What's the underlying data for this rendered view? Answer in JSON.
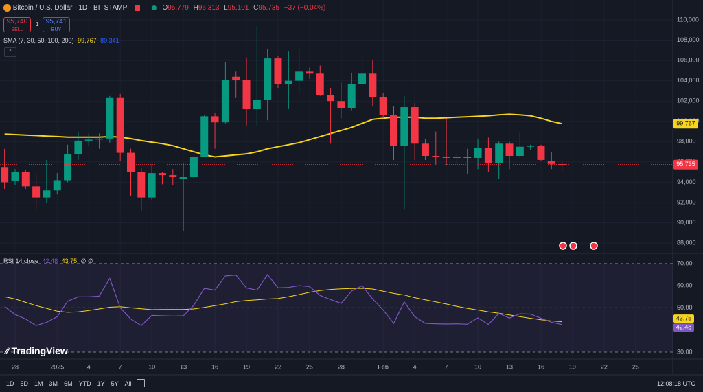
{
  "header": {
    "symbol": "Bitcoin / U.S. Dollar · 1D · BITSTAMP",
    "ohlc": [
      {
        "key": "O",
        "value": "95,779"
      },
      {
        "key": "H",
        "value": "96,313"
      },
      {
        "key": "L",
        "value": "95,101"
      },
      {
        "key": "C",
        "value": "95,735"
      }
    ],
    "change": "−37 (−0.04%)"
  },
  "trade": {
    "sell_price": "95,740",
    "sell": "SELL",
    "spread": "1",
    "buy_price": "95,741",
    "buy": "BUY"
  },
  "branding": "TradingView",
  "toolbar": {
    "ranges": [
      "1D",
      "5D",
      "1M",
      "3M",
      "6M",
      "YTD",
      "1Y",
      "5Y",
      "All"
    ],
    "clock": "12:08:18 UTC"
  },
  "chart_data": [
    {
      "type": "candlestick",
      "up_color": "#089981",
      "down_color": "#f23645",
      "grid": true,
      "categories": [
        null,
        "28",
        null,
        null,
        null,
        "2025",
        null,
        null,
        "4",
        null,
        null,
        "7",
        null,
        null,
        "10",
        null,
        null,
        "13",
        null,
        null,
        "16",
        null,
        null,
        "19",
        null,
        null,
        "22",
        null,
        null,
        "25",
        null,
        null,
        "28",
        null,
        null,
        null,
        "Feb",
        null,
        null,
        "4",
        null,
        null,
        "7",
        null,
        null,
        "10",
        null,
        null,
        "13",
        null,
        null,
        "16",
        null,
        null,
        "19",
        null,
        null,
        "22",
        null,
        null,
        "25",
        null,
        null
      ],
      "open": [
        95500,
        94100,
        95000,
        93600,
        92500,
        93200,
        94200,
        96800,
        98100,
        98200,
        98300,
        102300,
        96900,
        95000,
        92500,
        94900,
        94700,
        94300,
        94500,
        96500,
        100500,
        99900,
        104400,
        104100,
        101200,
        102100,
        106200,
        103700,
        104000,
        104900,
        104700,
        102600,
        102000,
        101300,
        103700,
        104700,
        102400,
        100600,
        97600,
        101400,
        97800,
        96600,
        96500,
        96400,
        96500,
        96400,
        97400,
        95900,
        97800,
        96600,
        97500,
        97600,
        96100,
        95779,
        null,
        null,
        null,
        null,
        null,
        null,
        null,
        null,
        null
      ],
      "high": [
        97300,
        95300,
        95200,
        94900,
        96200,
        94900,
        97700,
        98900,
        98800,
        98800,
        102500,
        102700,
        97300,
        95400,
        95800,
        95000,
        95300,
        95900,
        97300,
        100600,
        100800,
        105800,
        104900,
        106300,
        109400,
        107100,
        106400,
        106900,
        107100,
        105300,
        105500,
        103300,
        103800,
        104800,
        106400,
        106000,
        102800,
        101500,
        102500,
        101800,
        98300,
        99000,
        100300,
        96900,
        97300,
        98300,
        98400,
        98000,
        98000,
        98900,
        97700,
        97700,
        97000,
        96313,
        null,
        null,
        null,
        null,
        null,
        null,
        null,
        null,
        null
      ],
      "low": [
        93300,
        93700,
        93300,
        91300,
        92000,
        92800,
        94000,
        96200,
        97600,
        97300,
        97900,
        96100,
        92600,
        91200,
        92200,
        93800,
        93700,
        89200,
        94300,
        96500,
        97300,
        99800,
        102300,
        99600,
        99500,
        100100,
        103300,
        101200,
        102800,
        104200,
        102500,
        97800,
        100300,
        101100,
        103300,
        101500,
        100300,
        96200,
        91300,
        96200,
        96200,
        95700,
        95700,
        95700,
        94800,
        95300,
        95000,
        94300,
        95300,
        96400,
        97200,
        96100,
        95300,
        95101,
        null,
        null,
        null,
        null,
        null,
        null,
        null,
        null,
        null
      ],
      "close": [
        94000,
        95000,
        93600,
        92500,
        93200,
        94200,
        96800,
        98100,
        98200,
        98300,
        102300,
        96900,
        95000,
        92500,
        94900,
        94700,
        94500,
        94500,
        96500,
        100500,
        99900,
        104100,
        104100,
        101200,
        102100,
        106200,
        103700,
        104000,
        104900,
        104700,
        102600,
        102000,
        101300,
        103700,
        104700,
        102400,
        100600,
        97600,
        101400,
        97800,
        96600,
        96500,
        96400,
        96500,
        96400,
        97400,
        95900,
        97800,
        96600,
        97500,
        97600,
        96200,
        95800,
        95735,
        null,
        null,
        null,
        null,
        null,
        null,
        null,
        null,
        null
      ],
      "series": [
        {
          "name": "SMA (7, 30, 50, 100, 200)",
          "color": "#f7d51d",
          "values": [
            98750,
            98700,
            98650,
            98600,
            98550,
            98500,
            98450,
            98450,
            98450,
            98450,
            98500,
            98450,
            98300,
            98100,
            97950,
            97800,
            97600,
            97300,
            97000,
            96700,
            96500,
            96600,
            96700,
            96800,
            97000,
            97300,
            97500,
            97700,
            97900,
            98200,
            98500,
            98800,
            99100,
            99400,
            99800,
            100200,
            100300,
            100400,
            100400,
            100400,
            100300,
            100300,
            100350,
            100400,
            100450,
            100500,
            100550,
            100650,
            100700,
            100650,
            100550,
            100300,
            100000,
            99767,
            null,
            null,
            null,
            null,
            null,
            null,
            null,
            null,
            null
          ]
        }
      ],
      "legend_values": [
        {
          "value": 99767,
          "label": "99,767",
          "color": "#f7d51d"
        },
        {
          "value": 80341,
          "label": "80,341",
          "color": "#2962ff"
        }
      ],
      "last_price": {
        "value": 95735,
        "label": "95,735"
      },
      "ylim": [
        87060,
        111960
      ],
      "yticks": [
        {
          "value": 110000,
          "label": "110,000"
        },
        {
          "value": 108000,
          "label": "108,000"
        },
        {
          "value": 106000,
          "label": "106,000"
        },
        {
          "value": 104000,
          "label": "104,000"
        },
        {
          "value": 102000,
          "label": "102,000"
        },
        {
          "value": 100000,
          "label": "100,000"
        },
        {
          "value": 98000,
          "label": "98,000"
        },
        {
          "value": 96000,
          "label": "96,000"
        },
        {
          "value": 94000,
          "label": "94,000"
        },
        {
          "value": 92000,
          "label": "92,000"
        },
        {
          "value": 90000,
          "label": "90,000"
        },
        {
          "value": 88000,
          "label": "88,000"
        }
      ]
    },
    {
      "type": "line",
      "title": "RSI 14 close",
      "legend_extra": "∅ ∅",
      "band": [
        30,
        70
      ],
      "hlines": [
        70,
        50,
        30
      ],
      "band_color": "#7e57c2",
      "series": [
        {
          "color": "#7e57c2",
          "values": [
            50.6,
            47,
            45,
            42,
            43.5,
            46,
            53,
            55,
            55,
            55.3,
            63.3,
            50,
            45,
            42,
            46.6,
            46.4,
            46.3,
            46.4,
            51.2,
            58.8,
            58,
            64.4,
            64.8,
            59,
            58,
            65,
            59,
            59.2,
            60,
            59.6,
            55.6,
            53.7,
            52,
            57.6,
            60,
            54,
            49,
            43,
            52.7,
            46,
            43,
            42.8,
            42.7,
            42.8,
            42.6,
            45.5,
            42.5,
            47.5,
            45.4,
            47.3,
            47.2,
            45.3,
            43.5,
            42.48,
            null,
            null,
            null,
            null,
            null,
            null,
            null,
            null,
            null
          ]
        },
        {
          "color": "#f7d51d",
          "values": [
            55,
            54,
            52.5,
            51,
            49.8,
            48.5,
            48,
            48.2,
            48.8,
            49.5,
            50.3,
            50.5,
            50,
            49.6,
            49.2,
            49.3,
            49.3,
            49.3,
            49.5,
            50.2,
            51,
            51.8,
            52.8,
            53.3,
            53.6,
            54,
            54.2,
            55,
            56,
            57,
            57.8,
            58.3,
            58.6,
            58.7,
            58.8,
            58.5,
            57.5,
            56.5,
            55.8,
            54.6,
            53.6,
            52.7,
            51.7,
            50.7,
            49.8,
            49,
            48.2,
            47.6,
            46.8,
            46,
            45.3,
            44.6,
            44.1,
            43.75,
            null,
            null,
            null,
            null,
            null,
            null,
            null,
            null,
            null
          ]
        }
      ],
      "ylim": [
        27.2,
        74.3
      ],
      "yticks": [
        {
          "value": 70,
          "label": "70.00"
        },
        {
          "value": 60,
          "label": "60.00"
        },
        {
          "value": 50,
          "label": "50.00"
        },
        {
          "value": 40,
          "label": "40.00"
        },
        {
          "value": 30,
          "label": "30.00"
        }
      ]
    }
  ]
}
